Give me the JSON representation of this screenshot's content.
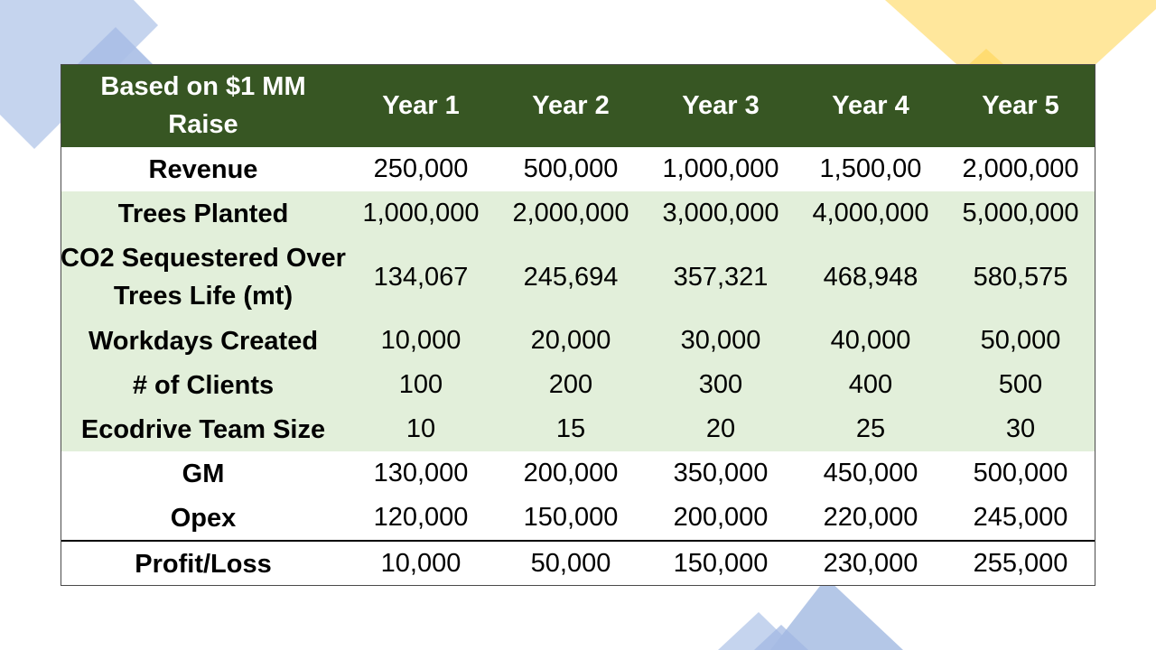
{
  "table": {
    "header": {
      "label": "Based on $1 MM Raise",
      "years": [
        "Year 1",
        "Year 2",
        "Year 3",
        "Year 4",
        "Year 5"
      ]
    },
    "rows": [
      {
        "label": "Revenue",
        "values": [
          "250,000",
          "500,000",
          "1,000,000",
          "1,500,00",
          "2,000,000"
        ]
      },
      {
        "label": "Trees Planted",
        "values": [
          "1,000,000",
          "2,000,000",
          "3,000,000",
          "4,000,000",
          "5,000,000"
        ]
      },
      {
        "label": "CO2 Sequestered Over Trees Life (mt)",
        "values": [
          "134,067",
          "245,694",
          "357,321",
          "468,948",
          "580,575"
        ]
      },
      {
        "label": "Workdays Created",
        "values": [
          "10,000",
          "20,000",
          "30,000",
          "40,000",
          "50,000"
        ]
      },
      {
        "label": "# of Clients",
        "values": [
          "100",
          "200",
          "300",
          "400",
          "500"
        ]
      },
      {
        "label": "Ecodrive Team Size",
        "values": [
          "10",
          "15",
          "20",
          "25",
          "30"
        ]
      },
      {
        "label": "GM",
        "values": [
          "130,000",
          "200,000",
          "350,000",
          "450,000",
          "500,000"
        ]
      },
      {
        "label": "Opex",
        "values": [
          "120,000",
          "150,000",
          "200,000",
          "220,000",
          "245,000"
        ]
      },
      {
        "label": "Profit/Loss",
        "values": [
          "10,000",
          "50,000",
          "150,000",
          "230,000",
          "255,000"
        ]
      }
    ]
  },
  "colors": {
    "header_bg": "#375623",
    "band_bg": "#e2efda",
    "deco_blue": "#b4c7e7",
    "deco_yellow": "#ffe699"
  }
}
